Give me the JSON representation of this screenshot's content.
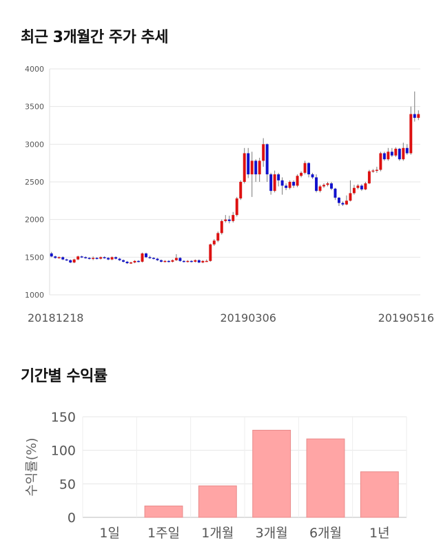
{
  "sections": {
    "price_title": "최근 3개월간 주가 추세",
    "returns_title": "기간별 수익률"
  },
  "chart_data": [
    {
      "type": "candlestick",
      "title": "최근 3개월간 주가 추세",
      "ylim": [
        1000,
        4000
      ],
      "y_ticks": [
        1000,
        1500,
        2000,
        2500,
        3000,
        3500,
        4000
      ],
      "x_tick_labels": [
        "20181218",
        "20190306",
        "20190516"
      ],
      "grid": true,
      "colors": {
        "up": "#dd1111",
        "down": "#1111cc",
        "wick": "#777777"
      },
      "candles": [
        [
          1550,
          1510,
          1570,
          1500
        ],
        [
          1510,
          1490,
          1520,
          1480
        ],
        [
          1490,
          1500,
          1510,
          1480
        ],
        [
          1500,
          1470,
          1510,
          1460
        ],
        [
          1470,
          1460,
          1480,
          1450
        ],
        [
          1460,
          1430,
          1470,
          1420
        ],
        [
          1430,
          1470,
          1480,
          1420
        ],
        [
          1470,
          1510,
          1520,
          1460
        ],
        [
          1510,
          1500,
          1520,
          1490
        ],
        [
          1500,
          1490,
          1510,
          1480
        ],
        [
          1490,
          1480,
          1500,
          1470
        ],
        [
          1480,
          1490,
          1510,
          1460
        ],
        [
          1490,
          1480,
          1500,
          1470
        ],
        [
          1480,
          1500,
          1510,
          1470
        ],
        [
          1500,
          1490,
          1510,
          1480
        ],
        [
          1490,
          1470,
          1500,
          1460
        ],
        [
          1470,
          1500,
          1510,
          1460
        ],
        [
          1500,
          1480,
          1510,
          1470
        ],
        [
          1480,
          1460,
          1490,
          1450
        ],
        [
          1460,
          1440,
          1470,
          1430
        ],
        [
          1440,
          1420,
          1450,
          1410
        ],
        [
          1420,
          1430,
          1440,
          1410
        ],
        [
          1430,
          1450,
          1460,
          1420
        ],
        [
          1450,
          1440,
          1460,
          1430
        ],
        [
          1440,
          1550,
          1560,
          1430
        ],
        [
          1550,
          1500,
          1560,
          1490
        ],
        [
          1500,
          1490,
          1520,
          1480
        ],
        [
          1490,
          1480,
          1500,
          1470
        ],
        [
          1480,
          1460,
          1490,
          1450
        ],
        [
          1460,
          1440,
          1470,
          1430
        ],
        [
          1440,
          1450,
          1460,
          1430
        ],
        [
          1450,
          1440,
          1460,
          1430
        ],
        [
          1440,
          1460,
          1470,
          1430
        ],
        [
          1460,
          1490,
          1540,
          1450
        ],
        [
          1490,
          1450,
          1500,
          1440
        ],
        [
          1450,
          1440,
          1460,
          1430
        ],
        [
          1440,
          1450,
          1460,
          1430
        ],
        [
          1450,
          1440,
          1460,
          1430
        ],
        [
          1440,
          1460,
          1470,
          1430
        ],
        [
          1460,
          1430,
          1470,
          1420
        ],
        [
          1430,
          1450,
          1460,
          1420
        ],
        [
          1450,
          1450,
          1470,
          1440
        ],
        [
          1450,
          1670,
          1680,
          1440
        ],
        [
          1670,
          1720,
          1740,
          1650
        ],
        [
          1720,
          1820,
          1840,
          1700
        ],
        [
          1820,
          1980,
          2000,
          1800
        ],
        [
          1980,
          2000,
          2060,
          1960
        ],
        [
          2000,
          1980,
          2050,
          1950
        ],
        [
          1980,
          2060,
          2100,
          1960
        ],
        [
          2060,
          2280,
          2300,
          2040
        ],
        [
          2280,
          2500,
          2520,
          2260
        ],
        [
          2500,
          2880,
          2950,
          2480
        ],
        [
          2880,
          2600,
          2950,
          2550
        ],
        [
          2600,
          2780,
          2900,
          2300
        ],
        [
          2780,
          2600,
          2800,
          2500
        ],
        [
          2600,
          2780,
          2820,
          2500
        ],
        [
          2780,
          3000,
          3080,
          2700
        ],
        [
          3000,
          2600,
          3010,
          2500
        ],
        [
          2600,
          2380,
          2620,
          2330
        ],
        [
          2380,
          2600,
          2650,
          2360
        ],
        [
          2600,
          2520,
          2620,
          2440
        ],
        [
          2520,
          2450,
          2560,
          2330
        ],
        [
          2450,
          2420,
          2480,
          2390
        ],
        [
          2420,
          2500,
          2520,
          2400
        ],
        [
          2500,
          2450,
          2520,
          2420
        ],
        [
          2450,
          2580,
          2600,
          2430
        ],
        [
          2580,
          2620,
          2640,
          2560
        ],
        [
          2620,
          2750,
          2780,
          2600
        ],
        [
          2750,
          2600,
          2760,
          2560
        ],
        [
          2600,
          2560,
          2620,
          2540
        ],
        [
          2560,
          2380,
          2600,
          2360
        ],
        [
          2380,
          2440,
          2460,
          2360
        ],
        [
          2440,
          2460,
          2480,
          2420
        ],
        [
          2460,
          2480,
          2500,
          2440
        ],
        [
          2480,
          2410,
          2500,
          2390
        ],
        [
          2410,
          2290,
          2420,
          2260
        ],
        [
          2290,
          2220,
          2300,
          2180
        ],
        [
          2220,
          2200,
          2240,
          2180
        ],
        [
          2200,
          2250,
          2320,
          2190
        ],
        [
          2250,
          2350,
          2520,
          2240
        ],
        [
          2350,
          2420,
          2460,
          2330
        ],
        [
          2420,
          2450,
          2470,
          2400
        ],
        [
          2450,
          2400,
          2470,
          2380
        ],
        [
          2400,
          2480,
          2500,
          2390
        ],
        [
          2480,
          2640,
          2660,
          2470
        ],
        [
          2640,
          2650,
          2670,
          2620
        ],
        [
          2650,
          2660,
          2700,
          2620
        ],
        [
          2660,
          2880,
          2900,
          2640
        ],
        [
          2880,
          2800,
          2900,
          2780
        ],
        [
          2800,
          2900,
          2950,
          2780
        ],
        [
          2900,
          2850,
          2950,
          2830
        ],
        [
          2850,
          2940,
          2960,
          2830
        ],
        [
          2940,
          2800,
          2950,
          2780
        ],
        [
          2800,
          2950,
          3020,
          2780
        ],
        [
          2950,
          2880,
          3000,
          2860
        ],
        [
          2880,
          3400,
          3500,
          2860
        ],
        [
          3400,
          3350,
          3700,
          3300
        ],
        [
          3350,
          3400,
          3450,
          3320
        ]
      ]
    },
    {
      "type": "bar",
      "title": "기간별 수익률",
      "categories": [
        "1일",
        "1주일",
        "1개월",
        "3개월",
        "6개월",
        "1년"
      ],
      "values": [
        0,
        17,
        47,
        130,
        117,
        68
      ],
      "ylabel": "수익률(%)",
      "ylim": [
        0,
        150
      ],
      "y_ticks": [
        0,
        50,
        100,
        150
      ],
      "grid": true,
      "colors": {
        "bar": "#ffa5a5",
        "bar_border": "#e88a8a"
      }
    }
  ]
}
